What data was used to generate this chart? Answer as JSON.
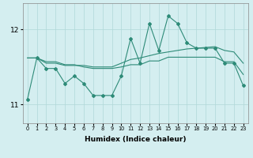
{
  "x": [
    0,
    1,
    2,
    3,
    4,
    5,
    6,
    7,
    8,
    9,
    10,
    11,
    12,
    13,
    14,
    15,
    16,
    17,
    18,
    19,
    20,
    21,
    22,
    23
  ],
  "line1": [
    11.07,
    11.62,
    11.48,
    11.48,
    11.28,
    11.38,
    11.28,
    11.12,
    11.12,
    11.12,
    11.38,
    11.88,
    11.55,
    12.08,
    11.72,
    12.18,
    12.08,
    11.82,
    11.75,
    11.75,
    11.75,
    11.55,
    11.55,
    11.25
  ],
  "line2": [
    11.62,
    11.62,
    11.55,
    11.55,
    11.52,
    11.52,
    11.52,
    11.5,
    11.5,
    11.5,
    11.55,
    11.6,
    11.62,
    11.65,
    11.68,
    11.7,
    11.72,
    11.74,
    11.75,
    11.76,
    11.77,
    11.72,
    11.7,
    11.55
  ],
  "line3": [
    11.62,
    11.62,
    11.57,
    11.57,
    11.53,
    11.53,
    11.5,
    11.48,
    11.48,
    11.48,
    11.5,
    11.53,
    11.53,
    11.58,
    11.58,
    11.63,
    11.63,
    11.63,
    11.63,
    11.63,
    11.63,
    11.57,
    11.57,
    11.4
  ],
  "xlabel": "Humidex (Indice chaleur)",
  "color": "#2e8b78",
  "bg_color": "#d4eef0",
  "grid_color": "#b0d8d8",
  "ylim_min": 10.75,
  "ylim_max": 12.35,
  "yticks": [
    11,
    12
  ],
  "ytick_labels": [
    "11",
    "12"
  ]
}
